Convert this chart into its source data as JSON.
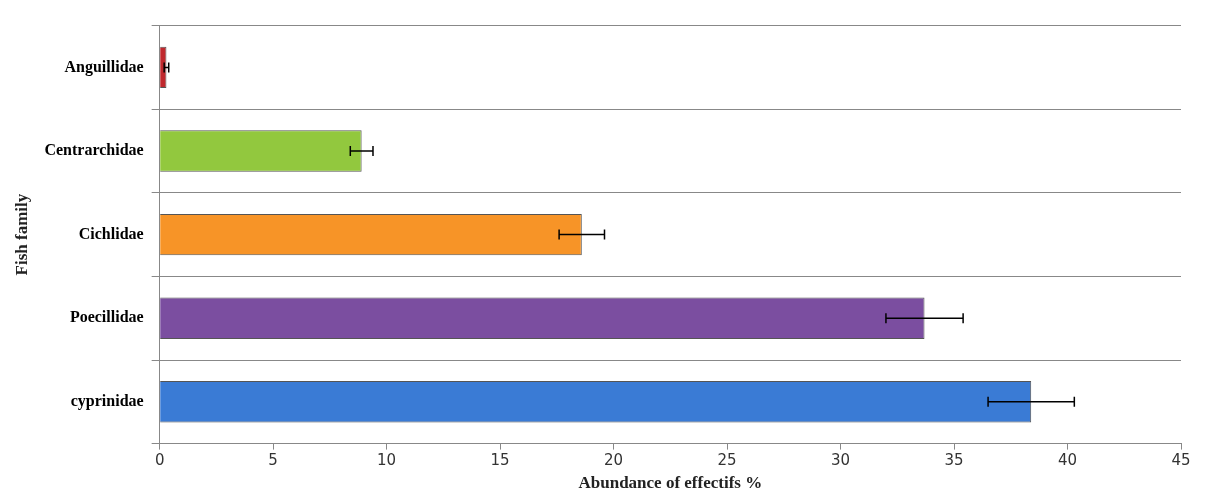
{
  "chart_data": {
    "type": "bar",
    "orientation": "horizontal",
    "xlabel": "Abundance of effectifs %",
    "ylabel": "Fish family",
    "categories": [
      "Anguillidae",
      "Centrarchidae",
      "Cichlidae",
      "Poecillidae",
      "cyprinidae"
    ],
    "values": [
      0.3,
      8.9,
      18.6,
      33.7,
      38.4
    ],
    "errors": [
      0.1,
      0.5,
      1.0,
      1.7,
      1.9
    ],
    "colors": [
      "#c0282d",
      "#92c83e",
      "#f79427",
      "#7b4ea0",
      "#3a7bd5"
    ],
    "xlim": [
      0,
      45
    ],
    "xticks": [
      0,
      5,
      10,
      15,
      20,
      25,
      30,
      35,
      40,
      45
    ],
    "grid": "y"
  }
}
